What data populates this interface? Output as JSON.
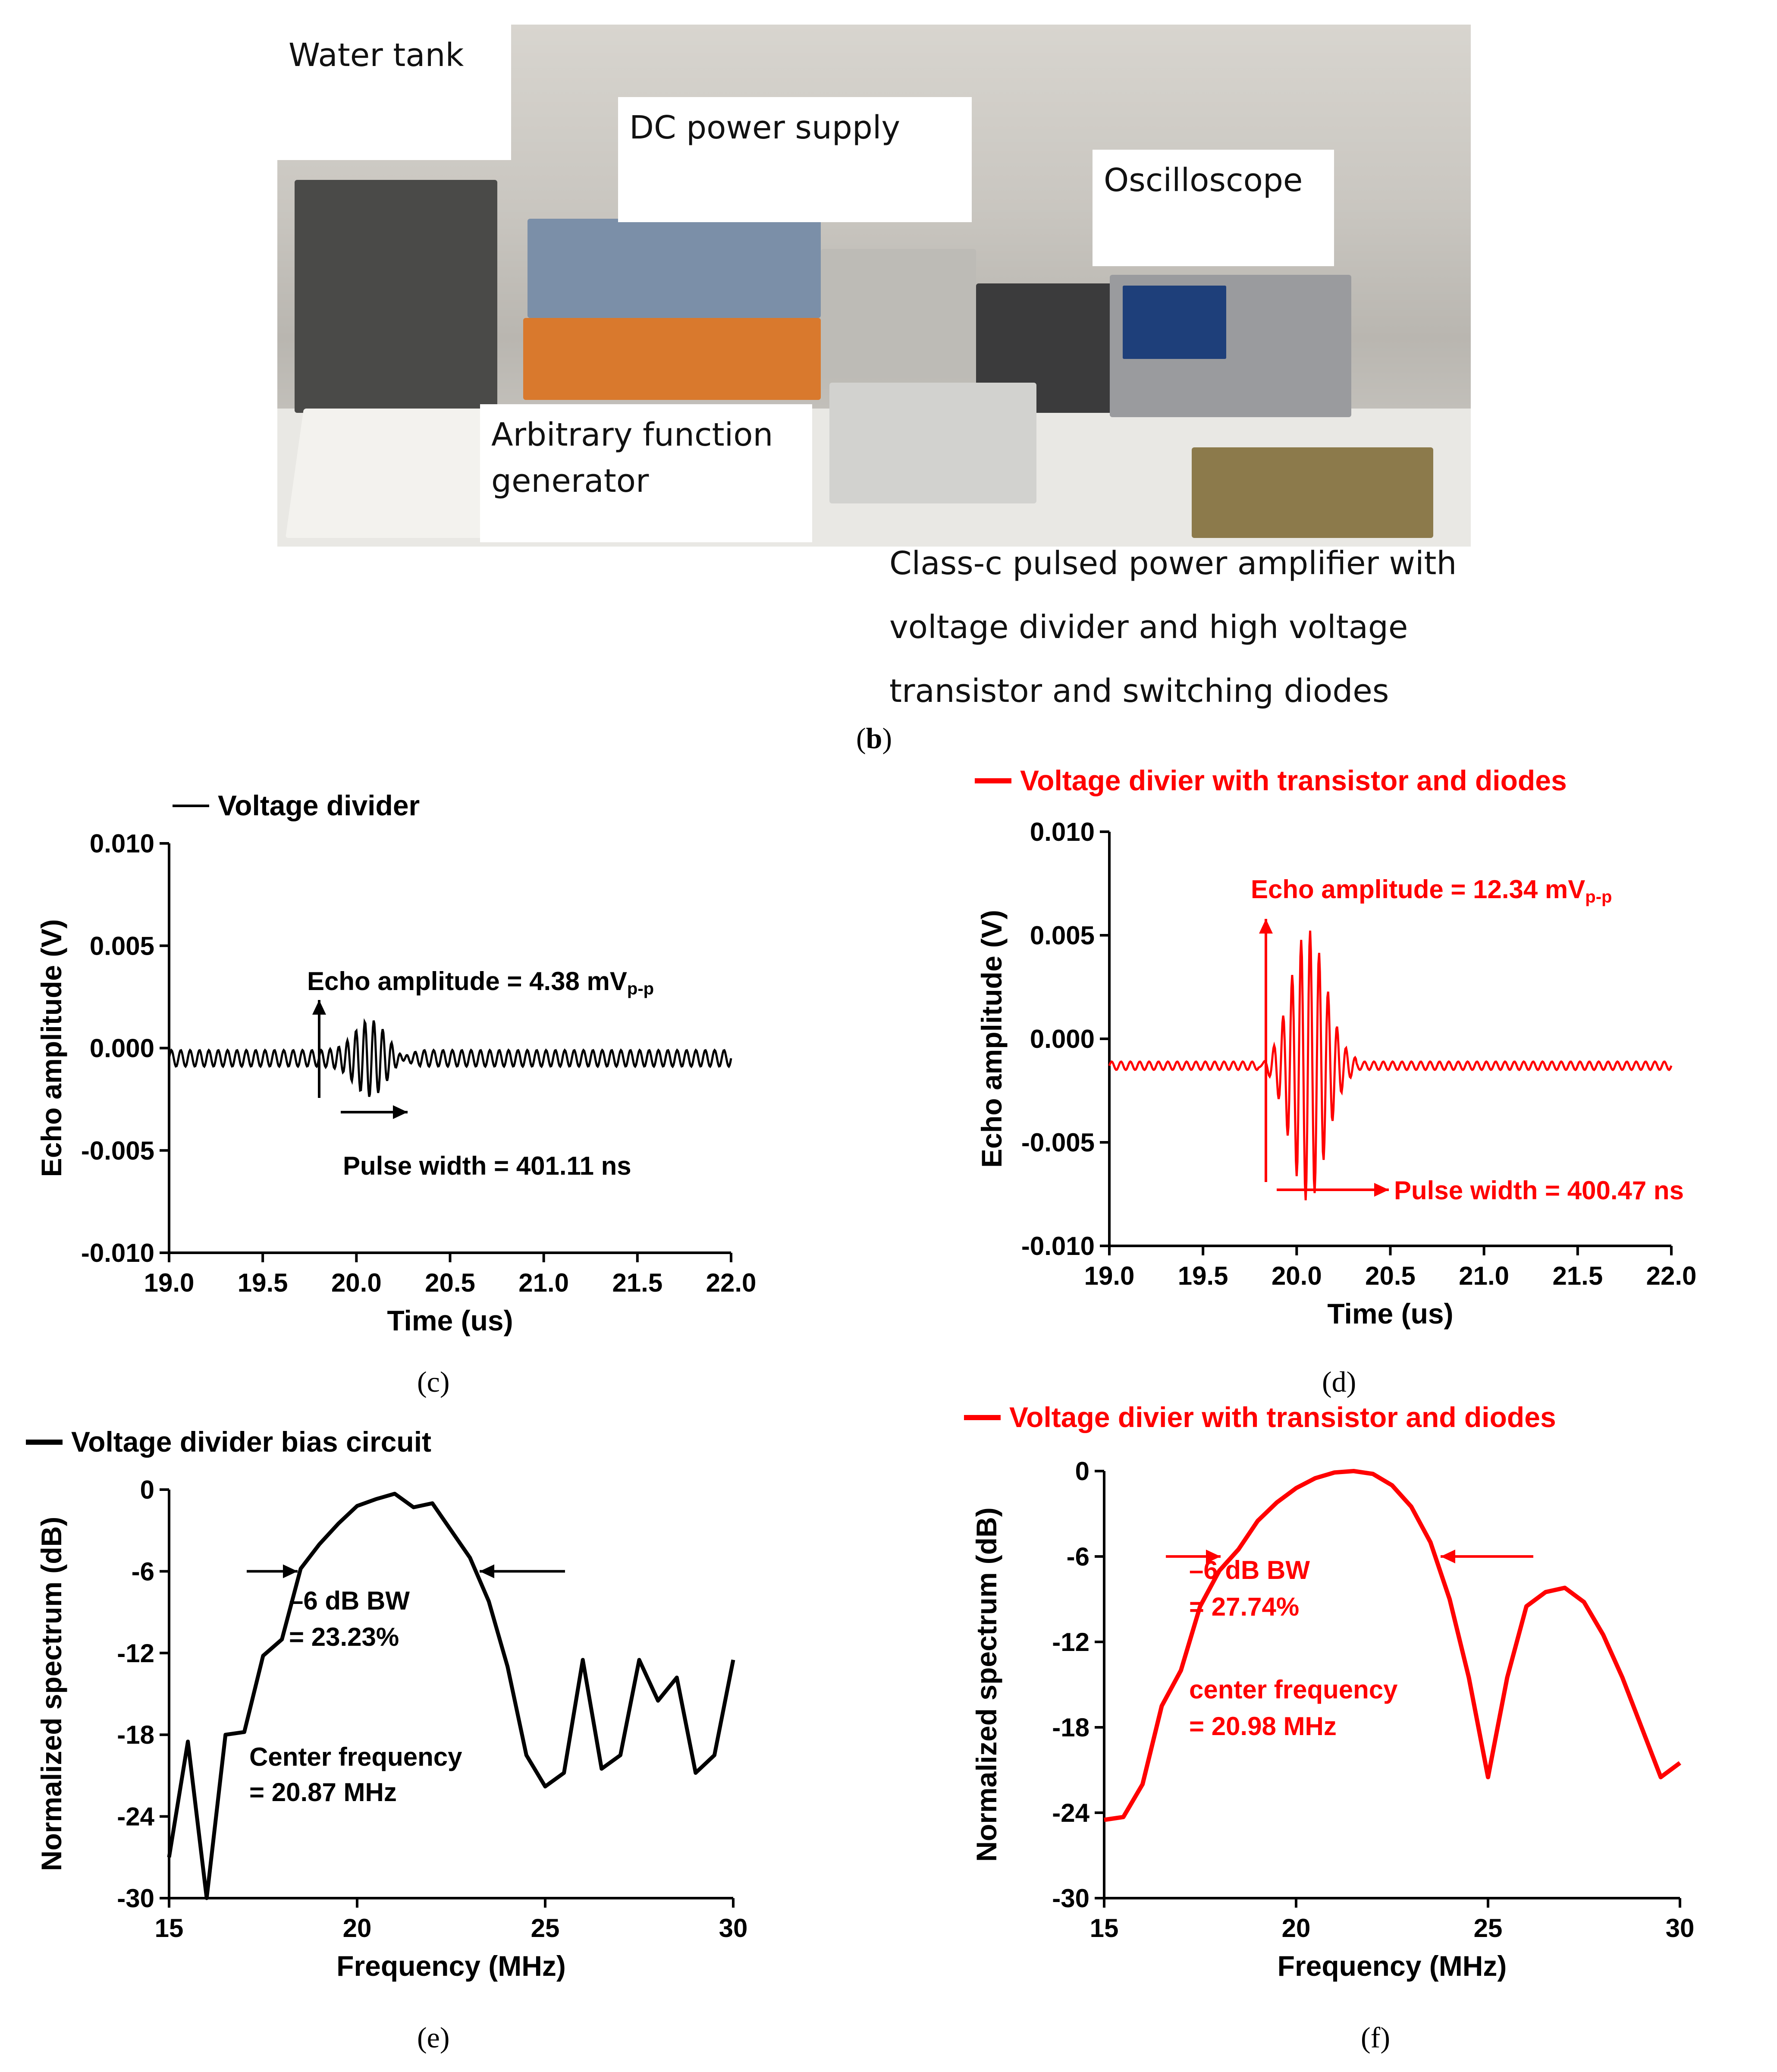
{
  "photo": {
    "labels": {
      "water_tank": "Water tank",
      "dc_power": "DC power supply",
      "oscilloscope": "Oscilloscope",
      "afg_line1": "Arbitrary function",
      "afg_line2": "generator"
    },
    "amp_lines": [
      "Class-c pulsed power amplifier with",
      "voltage divider and high voltage",
      "transistor and switching diodes"
    ]
  },
  "captions": {
    "b": "b",
    "c": "c",
    "d": "d",
    "e": "e",
    "f": "f"
  },
  "colors": {
    "black": "#000000",
    "red": "#ff0000"
  },
  "chart_data": [
    {
      "id": "c",
      "type": "line",
      "color": "#000000",
      "legend": "Voltage divider",
      "xlabel": "Time (us)",
      "ylabel": "Echo amplitude (V)",
      "xlim": [
        19.0,
        22.0
      ],
      "ylim": [
        -0.01,
        0.01
      ],
      "xticks": [
        "19.0",
        "19.5",
        "20.0",
        "20.5",
        "21.0",
        "21.5",
        "22.0"
      ],
      "yticks": [
        "0.010",
        "0.005",
        "0.000",
        "-0.005",
        "-0.010"
      ],
      "signal": {
        "baseline": -0.0005,
        "noise_amp": 0.0004,
        "noise_period_us": 0.05,
        "burst_center_us": 20.08,
        "burst_halfwidth_us": 0.2,
        "burst_peak": 0.0022,
        "burst_period_us": 0.048
      },
      "annotations": {
        "echo_label": "Echo amplitude = 4.38 mV",
        "echo_sub": "p-p",
        "pulse_label": "Pulse width = 401.11 ns"
      }
    },
    {
      "id": "d",
      "type": "line",
      "color": "#ff0000",
      "legend": "Voltage divier with transistor and diodes",
      "xlabel": "Time (us)",
      "ylabel": "Echo amplitude (V)",
      "xlim": [
        19.0,
        22.0
      ],
      "ylim": [
        -0.01,
        0.01
      ],
      "xticks": [
        "19.0",
        "19.5",
        "20.0",
        "20.5",
        "21.0",
        "21.5",
        "22.0"
      ],
      "yticks": [
        "0.010",
        "0.005",
        "0.000",
        "-0.005",
        "-0.010"
      ],
      "signal": {
        "baseline": -0.0013,
        "noise_amp": 0.0002,
        "noise_period_us": 0.05,
        "burst_center_us": 20.06,
        "burst_halfwidth_us": 0.2,
        "burst_peak": 0.0065,
        "burst_period_us": 0.048
      },
      "annotations": {
        "echo_label": "Echo amplitude = 12.34 mV",
        "echo_sub": "p-p",
        "pulse_label": "Pulse width = 400.47 ns"
      }
    },
    {
      "id": "e",
      "type": "line",
      "color": "#000000",
      "legend": "Voltage divider bias circuit",
      "xlabel": "Frequency (MHz)",
      "ylabel": "Normalized spectrum (dB)",
      "xlim": [
        15,
        30
      ],
      "ylim": [
        -30,
        0
      ],
      "xticks": [
        "15",
        "20",
        "25",
        "30"
      ],
      "yticks": [
        "0",
        "-6",
        "-12",
        "-18",
        "-24",
        "-30"
      ],
      "x": [
        15.0,
        15.5,
        16.0,
        16.5,
        17.0,
        17.5,
        18.0,
        18.5,
        19.0,
        19.5,
        20.0,
        20.5,
        21.0,
        21.5,
        22.0,
        22.5,
        23.0,
        23.5,
        24.0,
        24.5,
        25.0,
        25.5,
        26.0,
        26.5,
        27.0,
        27.5,
        28.0,
        28.5,
        29.0,
        29.5,
        30.0
      ],
      "y": [
        -27.0,
        -18.5,
        -30.0,
        -18.0,
        -17.8,
        -12.2,
        -11.0,
        -5.8,
        -4.0,
        -2.5,
        -1.2,
        -0.7,
        -0.3,
        -1.3,
        -1.0,
        -3.0,
        -5.0,
        -8.2,
        -13.0,
        -19.5,
        -21.8,
        -20.8,
        -12.5,
        -20.5,
        -19.5,
        -12.5,
        -15.5,
        -13.8,
        -20.8,
        -19.5,
        -12.5
      ],
      "bw_label_1": "–6 dB BW",
      "bw_label_2": "= 23.23%",
      "cf_label_1": "Center frequency",
      "cf_label_2": "= 20.87 MHz"
    },
    {
      "id": "f",
      "type": "line",
      "color": "#ff0000",
      "legend": "Voltage divier with transistor and diodes",
      "xlabel": "Frequency (MHz)",
      "ylabel": "Normalized spectrum (dB)",
      "xlim": [
        15,
        30
      ],
      "ylim": [
        -30,
        0
      ],
      "xticks": [
        "15",
        "20",
        "25",
        "30"
      ],
      "yticks": [
        "0",
        "-6",
        "-12",
        "-18",
        "-24",
        "-30"
      ],
      "x": [
        15.0,
        15.5,
        16.0,
        16.5,
        17.0,
        17.5,
        18.0,
        18.5,
        19.0,
        19.5,
        20.0,
        20.5,
        21.0,
        21.5,
        22.0,
        22.5,
        23.0,
        23.5,
        24.0,
        24.5,
        25.0,
        25.5,
        26.0,
        26.5,
        27.0,
        27.5,
        28.0,
        28.5,
        29.0,
        29.5,
        30.0
      ],
      "y": [
        -24.5,
        -24.3,
        -22.0,
        -16.5,
        -14.0,
        -9.5,
        -7.0,
        -5.5,
        -3.5,
        -2.2,
        -1.2,
        -0.5,
        -0.1,
        0.0,
        -0.2,
        -1.0,
        -2.5,
        -5.0,
        -9.0,
        -14.5,
        -21.5,
        -14.5,
        -9.5,
        -8.5,
        -8.2,
        -9.2,
        -11.5,
        -14.5,
        -18.0,
        -21.5,
        -20.5
      ],
      "bw_label_1": "–6 dB BW",
      "bw_label_2": "= 27.74%",
      "cf_label_1": "center frequency",
      "cf_label_2": "= 20.98 MHz"
    }
  ]
}
